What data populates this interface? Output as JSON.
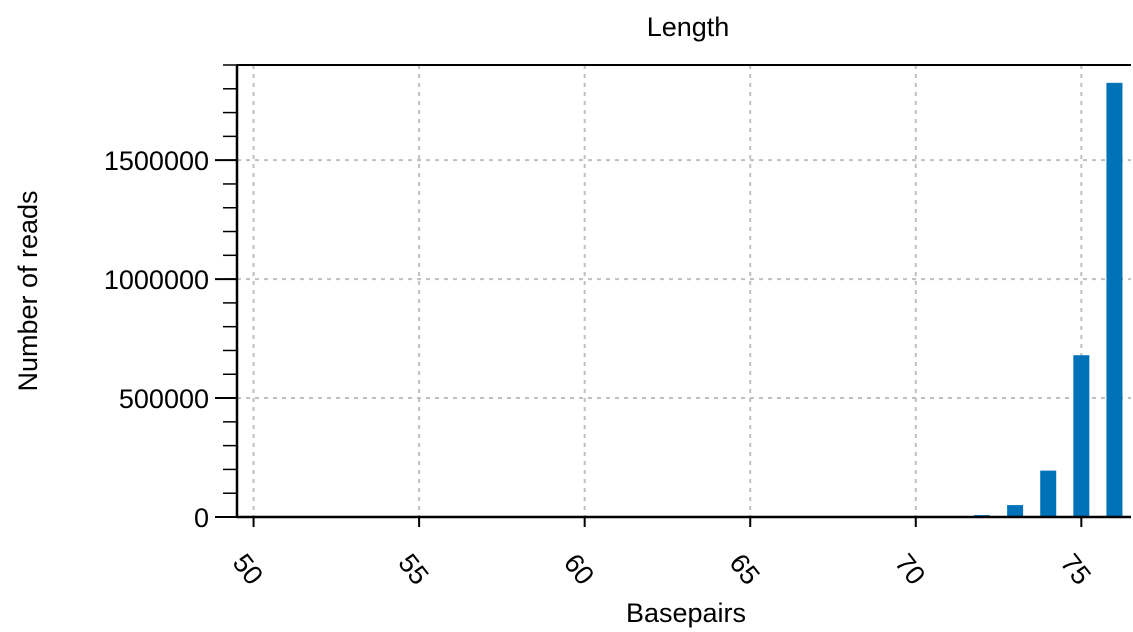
{
  "chart_data": {
    "type": "bar",
    "title": "Length",
    "xlabel": "Basepairs",
    "ylabel": "Number of reads",
    "x": [
      50,
      51,
      52,
      53,
      54,
      55,
      56,
      57,
      58,
      59,
      60,
      61,
      62,
      63,
      64,
      65,
      66,
      67,
      68,
      69,
      70,
      71,
      72,
      73,
      74,
      75,
      76
    ],
    "values": [
      0,
      0,
      0,
      0,
      0,
      0,
      0,
      0,
      0,
      0,
      0,
      0,
      0,
      0,
      0,
      0,
      0,
      0,
      0,
      0,
      0,
      1000,
      8000,
      50000,
      195000,
      680000,
      1825000
    ],
    "xlim": [
      49.5,
      76.5
    ],
    "ylim": [
      0,
      1900000
    ],
    "x_ticks": [
      50,
      55,
      60,
      65,
      70,
      75
    ],
    "y_ticks": [
      0,
      500000,
      1000000,
      1500000
    ],
    "y_minor_step": 100000,
    "grid": true,
    "legend": "none",
    "colors": {
      "bar": "#0072b8",
      "grid": "#bfbfbf",
      "axis": "#000000"
    }
  }
}
